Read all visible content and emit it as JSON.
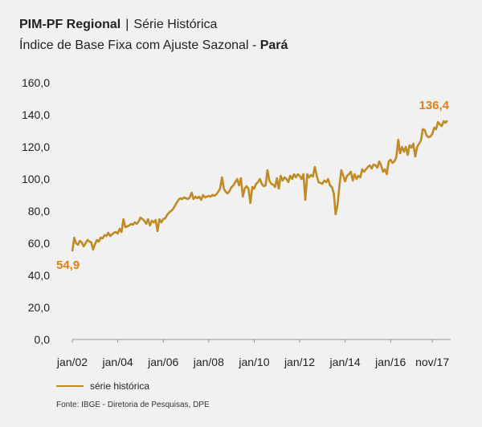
{
  "header": {
    "title_bold": "PIM-PF Regional",
    "title_sep": "|",
    "title_rest": "Série Histórica",
    "subtitle_main": "Índice de Base Fixa com Ajuste Sazonal - ",
    "subtitle_bold": "Pará"
  },
  "chart_data": {
    "type": "line",
    "title": "PIM-PF Regional | Série Histórica",
    "subtitle": "Índice de Base Fixa com Ajuste Sazonal - Pará",
    "xlabel": "",
    "ylabel": "",
    "ylim": [
      0,
      160
    ],
    "yticks": [
      "0,0",
      "20,0",
      "40,0",
      "60,0",
      "80,0",
      "100,0",
      "120,0",
      "140,0",
      "160,0"
    ],
    "xticks": [
      {
        "label": "jan/02",
        "t": 0
      },
      {
        "label": "jan/04",
        "t": 24
      },
      {
        "label": "jan/06",
        "t": 48
      },
      {
        "label": "jan/08",
        "t": 72
      },
      {
        "label": "jan/10",
        "t": 96
      },
      {
        "label": "jan/12",
        "t": 120
      },
      {
        "label": "jan/14",
        "t": 144
      },
      {
        "label": "jan/16",
        "t": 168
      },
      {
        "label": "nov/17",
        "t": 190
      }
    ],
    "grid": false,
    "legend_position": "bottom-left",
    "series": [
      {
        "name": "série histórica",
        "color": "#c08a24",
        "points": [
          [
            0,
            54.9
          ],
          [
            1,
            63.5
          ],
          [
            2,
            60
          ],
          [
            3,
            59
          ],
          [
            4,
            61.5
          ],
          [
            5,
            60.5
          ],
          [
            6,
            58
          ],
          [
            7,
            60
          ],
          [
            8,
            62
          ],
          [
            9,
            61
          ],
          [
            10,
            60.5
          ],
          [
            11,
            56
          ],
          [
            12,
            59.5
          ],
          [
            13,
            62
          ],
          [
            14,
            61
          ],
          [
            15,
            63.5
          ],
          [
            16,
            63
          ],
          [
            17,
            65
          ],
          [
            18,
            64.5
          ],
          [
            19,
            66.5
          ],
          [
            20,
            64.5
          ],
          [
            21,
            65.5
          ],
          [
            22,
            66.5
          ],
          [
            23,
            67
          ],
          [
            24,
            66
          ],
          [
            25,
            69
          ],
          [
            26,
            67
          ],
          [
            27,
            75
          ],
          [
            28,
            70
          ],
          [
            29,
            70.5
          ],
          [
            30,
            71
          ],
          [
            31,
            72
          ],
          [
            32,
            71.5
          ],
          [
            33,
            73
          ],
          [
            34,
            72
          ],
          [
            35,
            73.5
          ],
          [
            36,
            76
          ],
          [
            37,
            75
          ],
          [
            38,
            74
          ],
          [
            39,
            72
          ],
          [
            40,
            75
          ],
          [
            41,
            71
          ],
          [
            42,
            74
          ],
          [
            43,
            73
          ],
          [
            44,
            74.5
          ],
          [
            45,
            67.5
          ],
          [
            46,
            75
          ],
          [
            47,
            73
          ],
          [
            48,
            75
          ],
          [
            49,
            75.5
          ],
          [
            50,
            77.5
          ],
          [
            51,
            79
          ],
          [
            52,
            80
          ],
          [
            53,
            81
          ],
          [
            54,
            83
          ],
          [
            55,
            85
          ],
          [
            56,
            87
          ],
          [
            57,
            88
          ],
          [
            58,
            87.5
          ],
          [
            59,
            88.5
          ],
          [
            60,
            88
          ],
          [
            61,
            87.5
          ],
          [
            62,
            88.5
          ],
          [
            63,
            91.5
          ],
          [
            64,
            87.5
          ],
          [
            65,
            89
          ],
          [
            66,
            88
          ],
          [
            67,
            89
          ],
          [
            68,
            87
          ],
          [
            69,
            90
          ],
          [
            70,
            88.5
          ],
          [
            71,
            89
          ],
          [
            72,
            89.5
          ],
          [
            73,
            89
          ],
          [
            74,
            90
          ],
          [
            75,
            89.5
          ],
          [
            76,
            90.5
          ],
          [
            77,
            92
          ],
          [
            78,
            94
          ],
          [
            79,
            101
          ],
          [
            80,
            94
          ],
          [
            81,
            92
          ],
          [
            82,
            91
          ],
          [
            83,
            92.5
          ],
          [
            84,
            95
          ],
          [
            85,
            96
          ],
          [
            86,
            98
          ],
          [
            87,
            100
          ],
          [
            88,
            96
          ],
          [
            89,
            100.5
          ],
          [
            90,
            89
          ],
          [
            91,
            94
          ],
          [
            92,
            95.5
          ],
          [
            93,
            94
          ],
          [
            94,
            85
          ],
          [
            95,
            95
          ],
          [
            96,
            94
          ],
          [
            97,
            97
          ],
          [
            98,
            98
          ],
          [
            99,
            100
          ],
          [
            100,
            97
          ],
          [
            101,
            95.5
          ],
          [
            102,
            96
          ],
          [
            103,
            105.5
          ],
          [
            104,
            99
          ],
          [
            105,
            97
          ],
          [
            106,
            96.5
          ],
          [
            107,
            95
          ],
          [
            108,
            100.5
          ],
          [
            109,
            94
          ],
          [
            110,
            102
          ],
          [
            111,
            99
          ],
          [
            112,
            101
          ],
          [
            113,
            100
          ],
          [
            114,
            98
          ],
          [
            115,
            102
          ],
          [
            116,
            100
          ],
          [
            117,
            103
          ],
          [
            118,
            101
          ],
          [
            119,
            103
          ],
          [
            120,
            102
          ],
          [
            121,
            100
          ],
          [
            122,
            103
          ],
          [
            123,
            87
          ],
          [
            124,
            103
          ],
          [
            125,
            101
          ],
          [
            126,
            102.5
          ],
          [
            127,
            101.5
          ],
          [
            128,
            107.5
          ],
          [
            129,
            102
          ],
          [
            130,
            98
          ],
          [
            131,
            97.5
          ],
          [
            132,
            97
          ],
          [
            133,
            99
          ],
          [
            134,
            98
          ],
          [
            135,
            100
          ],
          [
            136,
            96
          ],
          [
            137,
            95
          ],
          [
            138,
            91
          ],
          [
            139,
            78
          ],
          [
            140,
            84
          ],
          [
            141,
            96
          ],
          [
            142,
            105.5
          ],
          [
            143,
            102
          ],
          [
            144,
            98.5
          ],
          [
            145,
            102
          ],
          [
            146,
            103
          ],
          [
            147,
            104.5
          ],
          [
            148,
            99
          ],
          [
            149,
            103
          ],
          [
            150,
            100
          ],
          [
            151,
            102
          ],
          [
            152,
            101
          ],
          [
            153,
            106
          ],
          [
            154,
            104.5
          ],
          [
            155,
            106
          ],
          [
            156,
            107.5
          ],
          [
            157,
            108.5
          ],
          [
            158,
            106.5
          ],
          [
            159,
            109
          ],
          [
            160,
            108.5
          ],
          [
            161,
            107
          ],
          [
            162,
            111
          ],
          [
            163,
            108.5
          ],
          [
            164,
            104.5
          ],
          [
            165,
            106
          ],
          [
            166,
            103
          ],
          [
            167,
            111
          ],
          [
            168,
            112
          ],
          [
            169,
            110
          ],
          [
            170,
            111
          ],
          [
            171,
            113.5
          ],
          [
            172,
            124.5
          ],
          [
            173,
            116
          ],
          [
            174,
            120
          ],
          [
            175,
            117
          ],
          [
            176,
            120
          ],
          [
            177,
            115
          ],
          [
            178,
            121
          ],
          [
            179,
            119.5
          ],
          [
            180,
            122
          ],
          [
            181,
            114
          ],
          [
            182,
            120
          ],
          [
            183,
            122
          ],
          [
            184,
            124
          ],
          [
            185,
            131
          ],
          [
            186,
            130.5
          ],
          [
            187,
            127
          ],
          [
            188,
            126
          ],
          [
            189,
            126.5
          ],
          [
            190,
            128
          ],
          [
            191,
            132
          ],
          [
            192,
            131
          ],
          [
            193,
            135.5
          ],
          [
            194,
            134
          ],
          [
            195,
            133
          ],
          [
            196,
            136
          ],
          [
            197,
            135
          ],
          [
            198,
            136.4
          ]
        ]
      }
    ],
    "annotations": [
      {
        "text": "54,9",
        "t": 0,
        "value": 54.9
      },
      {
        "text": "136,4",
        "t": 198,
        "value": 136.4
      }
    ]
  },
  "legend": {
    "label": "série histórica"
  },
  "footer": {
    "source": "Fonte: IBGE - Diretoria de Pesquisas, DPE"
  },
  "colors": {
    "line": "#c08a24",
    "annotation": "#e07f12",
    "background": "#f1f1f1",
    "axis": "#999999"
  }
}
